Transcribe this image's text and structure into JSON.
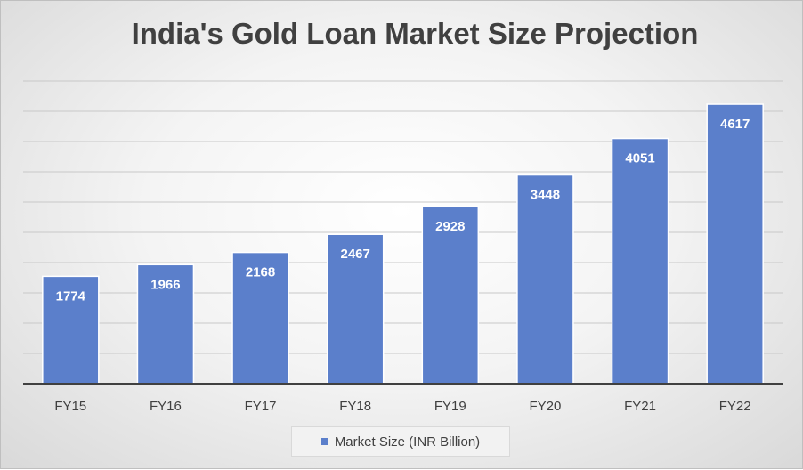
{
  "chart_data": {
    "type": "bar",
    "title": "India's Gold Loan Market Size Projection",
    "categories": [
      "FY15",
      "FY16",
      "FY17",
      "FY18",
      "FY19",
      "FY20",
      "FY21",
      "FY22"
    ],
    "series": [
      {
        "name": "Market Size (INR Billion)",
        "values": [
          1774,
          1966,
          2168,
          2467,
          2928,
          3448,
          4051,
          4617
        ],
        "color": "#5b7fcb"
      }
    ],
    "ylim": [
      0,
      5000
    ],
    "grid": true,
    "legend": "bottom",
    "data_labels": "inside-end"
  }
}
